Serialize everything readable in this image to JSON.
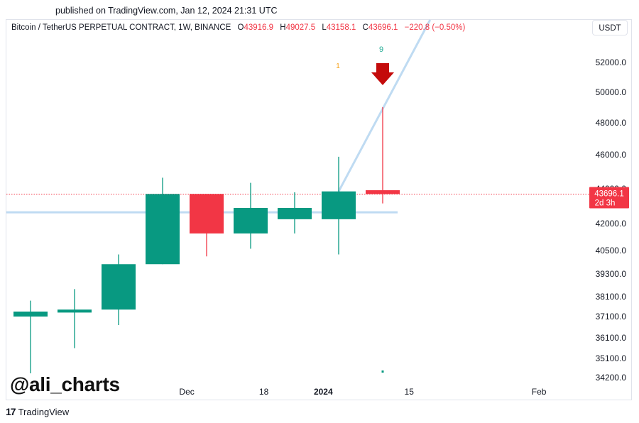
{
  "published": "published on TradingView.com, Jan 12, 2024 21:31 UTC",
  "legend": {
    "symbol": "Bitcoin / TetherUS PERPETUAL CONTRACT, 1W, BINANCE",
    "o_label": "O",
    "o_value": "43916.9",
    "h_label": "H",
    "h_value": "49027.5",
    "l_label": "L",
    "l_value": "43158.1",
    "c_label": "C",
    "c_value": "43696.1",
    "change": "−220.8 (−0.50%)"
  },
  "currency_button": "USDT",
  "watermark": "@ali_charts",
  "tv_logo": {
    "mark": "17",
    "text": "TradingView"
  },
  "price_label": {
    "value": "43696.1",
    "countdown": "2d 3h"
  },
  "annotations": {
    "sequential_count": "9",
    "setup_marker": "1"
  },
  "colors": {
    "up": "#089981",
    "down": "#f23645",
    "trendline": "#bfdbf2",
    "arrow": "#c40b0b",
    "price_line": "#f23645",
    "count_green": "#22ab94",
    "marker_orange": "#f7a21b"
  },
  "chart_data": {
    "type": "candlestick",
    "timeframe": "1W",
    "y_ticks": [
      "52000.0",
      "50000.0",
      "48000.0",
      "46000.0",
      "44000.0",
      "42000.0",
      "40500.0",
      "39300.0",
      "38100.0",
      "37100.0",
      "36100.0",
      "35100.0",
      "34200.0"
    ],
    "x_ticks": [
      {
        "label": "Dec",
        "bold": false,
        "index": 3.55
      },
      {
        "label": "18",
        "bold": false,
        "index": 5.3
      },
      {
        "label": "2024",
        "bold": true,
        "index": 6.65
      },
      {
        "label": "15",
        "bold": false,
        "index": 8.6
      },
      {
        "label": "Feb",
        "bold": false,
        "index": 11.55
      }
    ],
    "candles": [
      {
        "o": 37100,
        "h": 37900,
        "l": 34400,
        "c": 37350
      },
      {
        "o": 37300,
        "h": 38500,
        "l": 35600,
        "c": 37450
      },
      {
        "o": 37450,
        "h": 40300,
        "l": 36700,
        "c": 39800
      },
      {
        "o": 39800,
        "h": 44650,
        "l": 39800,
        "c": 43700
      },
      {
        "o": 43700,
        "h": 43700,
        "l": 40200,
        "c": 41450
      },
      {
        "o": 41450,
        "h": 44350,
        "l": 40600,
        "c": 42900
      },
      {
        "o": 42250,
        "h": 43800,
        "l": 41450,
        "c": 42900
      },
      {
        "o": 42250,
        "h": 45880,
        "l": 40300,
        "c": 43850
      },
      {
        "o": 43916.9,
        "h": 49027.5,
        "l": 43158.1,
        "c": 43696.1
      }
    ],
    "horizontal_level": 42650,
    "trendline": [
      {
        "index": 7.0,
        "price": 43850
      },
      {
        "index": 8.85,
        "price": 53600
      }
    ],
    "last_price": 43696.1
  }
}
